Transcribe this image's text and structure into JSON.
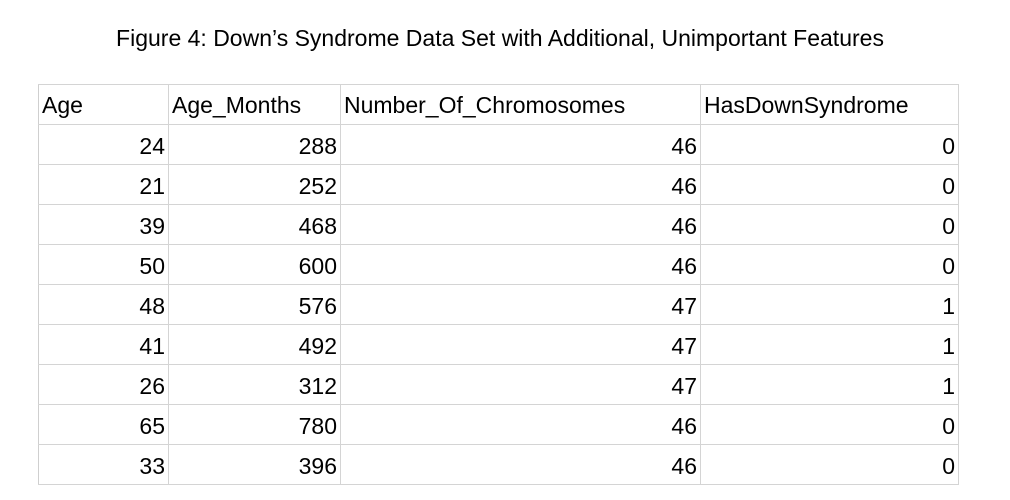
{
  "figure": {
    "title": "Figure 4: Down’s Syndrome Data Set with Additional, Unimportant Features"
  },
  "table": {
    "columns": [
      "Age",
      "Age_Months",
      "Number_Of_Chromosomes",
      "HasDownSyndrome"
    ],
    "rows": [
      [
        "24",
        "288",
        "46",
        "0"
      ],
      [
        "21",
        "252",
        "46",
        "0"
      ],
      [
        "39",
        "468",
        "46",
        "0"
      ],
      [
        "50",
        "600",
        "46",
        "0"
      ],
      [
        "48",
        "576",
        "47",
        "1"
      ],
      [
        "41",
        "492",
        "47",
        "1"
      ],
      [
        "26",
        "312",
        "47",
        "1"
      ],
      [
        "65",
        "780",
        "46",
        "0"
      ],
      [
        "33",
        "396",
        "46",
        "0"
      ]
    ]
  }
}
